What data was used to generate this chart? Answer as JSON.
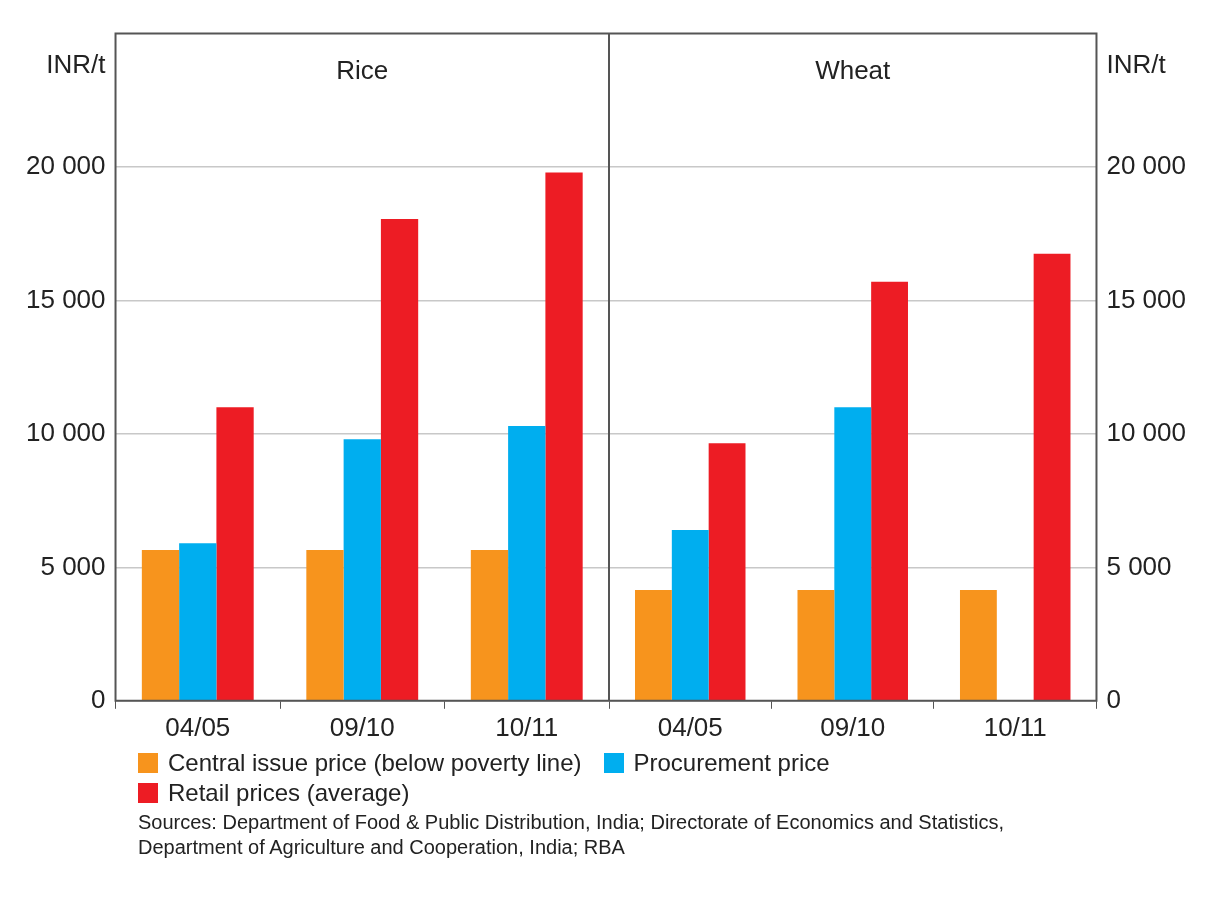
{
  "chart_data": [
    {
      "type": "bar",
      "title": "Rice",
      "ylabel": "INR/t",
      "categories": [
        "04/05",
        "09/10",
        "10/11"
      ],
      "series": [
        {
          "name": "Central issue price (below poverty line)",
          "color": "#f7941d",
          "values": [
            5650,
            5650,
            5650
          ]
        },
        {
          "name": "Procurement price",
          "color": "#00aeef",
          "values": [
            5900,
            9800,
            10300
          ]
        },
        {
          "name": "Retail prices (average)",
          "color": "#ed1c24",
          "values": [
            11000,
            18050,
            19800
          ]
        }
      ],
      "ylim": [
        0,
        25000
      ],
      "yticks": [
        0,
        {
          "value": 5000,
          "label": "5 000"
        },
        {
          "value": 10000,
          "label": "10 000"
        },
        {
          "value": 15000,
          "label": "15 000"
        },
        {
          "value": 20000,
          "label": "20 000"
        }
      ],
      "grid": "y",
      "legend": "bottom",
      "annotations": [
        "Sources: Department of Food & Public Distribution, India; Directorate of Economics and Statistics, Department of Agriculture and Cooperation, India; RBA"
      ]
    },
    {
      "type": "bar",
      "title": "Wheat",
      "y2label": "INR/t",
      "categories": [
        "04/05",
        "09/10",
        "10/11"
      ],
      "series": [
        {
          "color": "#f7941d",
          "axis": "y2",
          "values": [
            4150,
            4150,
            4150
          ]
        },
        {
          "color": "#00aeef",
          "axis": "y2",
          "values": [
            6400,
            11000,
            null
          ]
        },
        {
          "color": "#ed1c24",
          "axis": "y2",
          "values": [
            9650,
            15700,
            16750
          ]
        }
      ],
      "y2lim": [
        0,
        25000
      ],
      "y2ticks": [
        0,
        {
          "value": 5000,
          "label": "5 000"
        },
        {
          "value": 10000,
          "label": "10 000"
        },
        {
          "value": 15000,
          "label": "15 000"
        },
        {
          "value": 20000,
          "label": "20 000"
        }
      ],
      "grid": "y"
    }
  ]
}
